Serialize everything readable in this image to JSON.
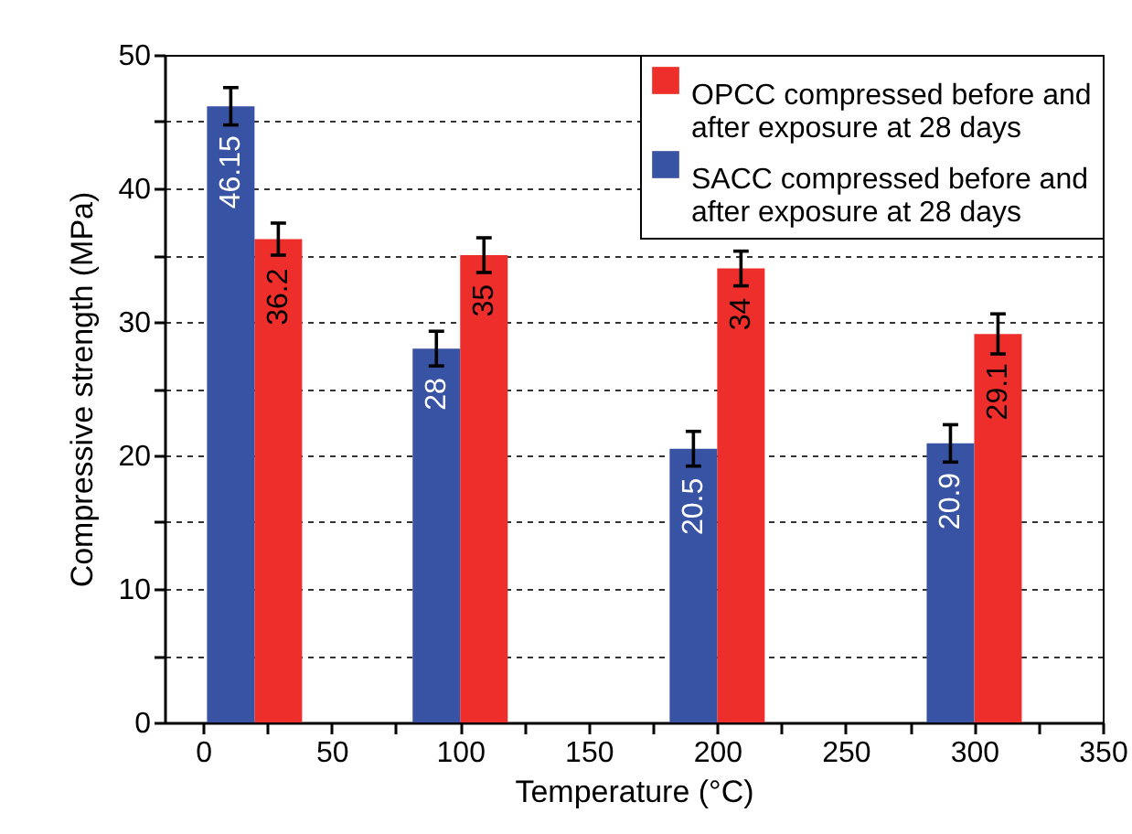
{
  "chart_data": {
    "type": "bar",
    "xlabel": "Temperature (°C)",
    "ylabel": "Compressive strength (MPa)",
    "x": [
      20,
      100,
      200,
      300
    ],
    "series": [
      {
        "name": "OPCC compressed before and after exposure at 28 days",
        "color": "#ee2e2b",
        "values": [
          36.2,
          35,
          34,
          29.1
        ],
        "errors": [
          1.2,
          1.3,
          1.3,
          1.5
        ]
      },
      {
        "name": "SACC compressed before and after exposure at 28 days",
        "color": "#3853a4",
        "values": [
          46.15,
          28,
          20.5,
          20.9
        ],
        "errors": [
          1.4,
          1.3,
          1.3,
          1.4
        ]
      }
    ],
    "xlim": [
      -15,
      350
    ],
    "xticks": [
      0,
      {
        "value": 25,
        "label": null
      },
      50,
      {
        "value": 75,
        "label": null
      },
      100,
      {
        "value": 125,
        "label": null
      },
      150,
      {
        "value": 175,
        "label": null
      },
      200,
      {
        "value": 225,
        "label": null
      },
      250,
      {
        "value": 275,
        "label": null
      },
      300,
      {
        "value": 325,
        "label": null
      },
      350
    ],
    "ylim": [
      0,
      50
    ],
    "yticks": [
      0,
      {
        "value": 5,
        "label": null
      },
      10,
      {
        "value": 15,
        "label": null
      },
      20,
      {
        "value": 25,
        "label": null
      },
      30,
      {
        "value": 35,
        "label": null
      },
      40,
      {
        "value": 45,
        "label": null
      },
      50
    ],
    "grid": "y",
    "legend": "top right",
    "data_labels": true
  }
}
